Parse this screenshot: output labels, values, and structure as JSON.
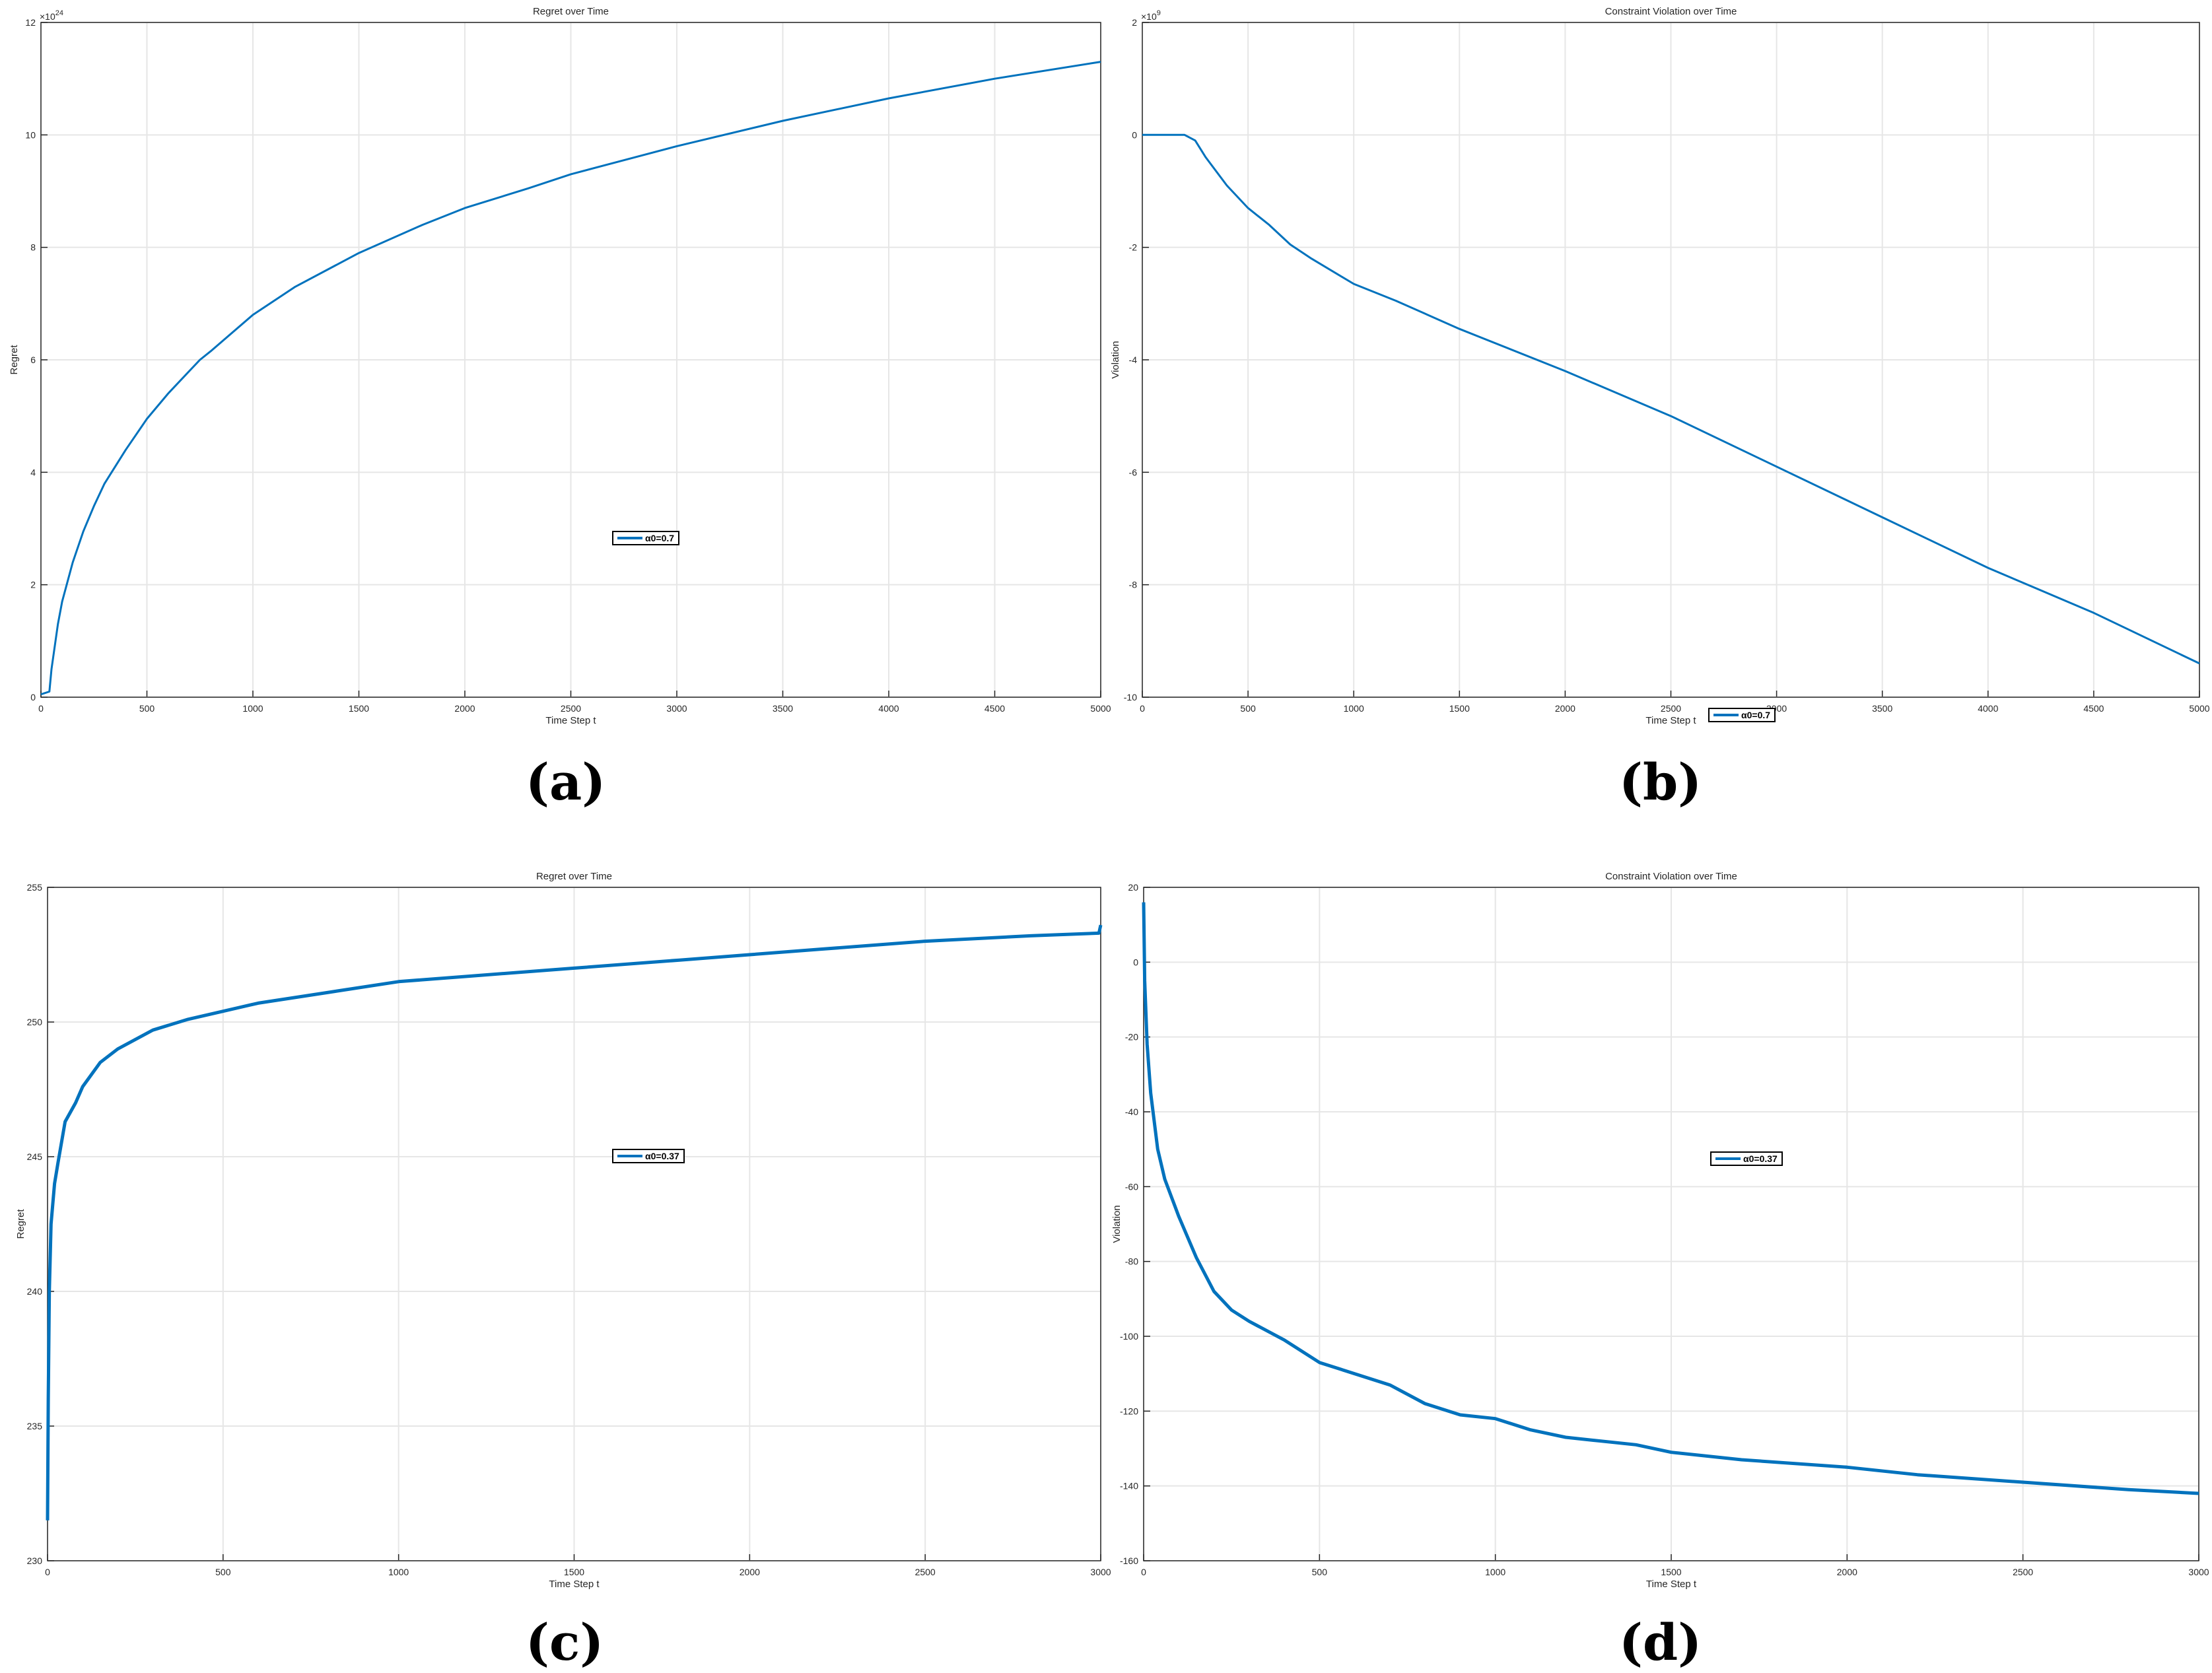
{
  "chart_data": [
    {
      "type": "line",
      "panel": "a",
      "title": "Regret over Time",
      "xlabel": "Time Step t",
      "ylabel": "Regret",
      "xlim": [
        0,
        5000
      ],
      "ylim": [
        0,
        12
      ],
      "y_exponent_label": "×10",
      "y_exponent": "24",
      "xticks": [
        "0",
        "500",
        "1000",
        "1500",
        "2000",
        "2500",
        "3000",
        "3500",
        "4000",
        "4500",
        "5000"
      ],
      "yticks": [
        "0",
        "2",
        "4",
        "6",
        "8",
        "10",
        "12"
      ],
      "grid": true,
      "legend_position": "center",
      "series": [
        {
          "name": "α0=0.7",
          "color": "#0072BD",
          "x": [
            0,
            40,
            50,
            80,
            100,
            150,
            200,
            250,
            300,
            400,
            500,
            600,
            700,
            750,
            800,
            1000,
            1200,
            1500,
            1800,
            2000,
            2300,
            2500,
            2800,
            3000,
            3500,
            4000,
            4500,
            5000
          ],
          "y": [
            0.05,
            0.1,
            0.5,
            1.3,
            1.7,
            2.4,
            2.95,
            3.4,
            3.8,
            4.4,
            4.95,
            5.4,
            5.8,
            6.0,
            6.15,
            6.8,
            7.3,
            7.9,
            8.4,
            8.7,
            9.05,
            9.3,
            9.6,
            9.8,
            10.25,
            10.65,
            11.0,
            11.3
          ]
        }
      ]
    },
    {
      "type": "line",
      "panel": "b",
      "title": "Constraint Violation over Time",
      "xlabel": "Time Step t",
      "ylabel": "Violation",
      "xlim": [
        0,
        5000
      ],
      "ylim": [
        -10,
        2
      ],
      "y_exponent_label": "×10",
      "y_exponent": "9",
      "xticks": [
        "0",
        "500",
        "1000",
        "1500",
        "2000",
        "2500",
        "3000",
        "3500",
        "4000",
        "4500",
        "5000"
      ],
      "yticks": [
        "-10",
        "-8",
        "-6",
        "-4",
        "-2",
        "0",
        "2"
      ],
      "grid": true,
      "legend_position": "bottom-center",
      "series": [
        {
          "name": "α0=0.7",
          "color": "#0072BD",
          "x": [
            0,
            200,
            250,
            300,
            400,
            500,
            600,
            700,
            800,
            1000,
            1200,
            1500,
            2000,
            2500,
            3000,
            3500,
            4000,
            4500,
            5000
          ],
          "y": [
            0,
            0,
            -0.1,
            -0.4,
            -0.9,
            -1.3,
            -1.6,
            -1.95,
            -2.2,
            -2.65,
            -2.95,
            -3.45,
            -4.2,
            -5.0,
            -5.9,
            -6.8,
            -7.7,
            -8.5,
            -9.4
          ]
        }
      ]
    },
    {
      "type": "line",
      "panel": "c",
      "title": "Regret over Time",
      "xlabel": "Time Step t",
      "ylabel": "Regret",
      "xlim": [
        0,
        3000
      ],
      "ylim": [
        230,
        255
      ],
      "xticks": [
        "0",
        "500",
        "1000",
        "1500",
        "2000",
        "2500",
        "3000"
      ],
      "yticks": [
        "230",
        "235",
        "240",
        "245",
        "250",
        "255"
      ],
      "grid": true,
      "legend_position": "center",
      "series": [
        {
          "name": "α0=0.37",
          "color": "#0072BD",
          "x": [
            0,
            2,
            5,
            10,
            20,
            30,
            50,
            80,
            100,
            150,
            200,
            300,
            400,
            500,
            600,
            800,
            1000,
            1200,
            1500,
            1800,
            2000,
            2200,
            2500,
            2800,
            2995,
            3000
          ],
          "y": [
            231.5,
            236,
            240,
            242.5,
            244,
            244.8,
            246.3,
            247,
            247.6,
            248.5,
            249,
            249.7,
            250.1,
            250.4,
            250.7,
            251.1,
            251.5,
            251.7,
            252.0,
            252.3,
            252.5,
            252.7,
            253.0,
            253.2,
            253.3,
            253.6
          ]
        }
      ]
    },
    {
      "type": "line",
      "panel": "d",
      "title": "Constraint Violation over Time",
      "xlabel": "Time Step t",
      "ylabel": "Violation",
      "xlim": [
        0,
        3000
      ],
      "ylim": [
        -160,
        20
      ],
      "xticks": [
        "0",
        "500",
        "1000",
        "1500",
        "2000",
        "2500",
        "3000"
      ],
      "yticks": [
        "-160",
        "-140",
        "-120",
        "-100",
        "-80",
        "-60",
        "-40",
        "-20",
        "0",
        "20"
      ],
      "grid": true,
      "legend_position": "center-right",
      "series": [
        {
          "name": "α0=0.37",
          "color": "#0072BD",
          "x": [
            0,
            3,
            10,
            20,
            40,
            60,
            100,
            150,
            200,
            250,
            300,
            400,
            500,
            600,
            700,
            800,
            900,
            1000,
            1100,
            1200,
            1300,
            1400,
            1500,
            1700,
            2000,
            2200,
            2500,
            2800,
            3000
          ],
          "y": [
            16,
            -5,
            -22,
            -35,
            -50,
            -58,
            -68,
            -79,
            -88,
            -93,
            -96,
            -101,
            -107,
            -110,
            -113,
            -118,
            -121,
            -122,
            -125,
            -127,
            -128,
            -129,
            -131,
            -133,
            -135,
            -137,
            -139,
            -141,
            -142
          ]
        }
      ]
    }
  ],
  "captions": [
    "(a)",
    "(b)",
    "(c)",
    "(d)"
  ]
}
